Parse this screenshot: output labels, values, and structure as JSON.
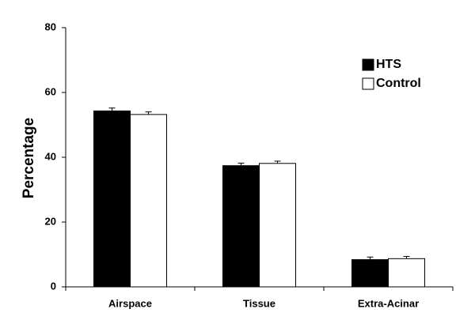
{
  "chart_data": {
    "type": "bar",
    "y_label": "Percentage",
    "categories": [
      "Airspace",
      "Tissue",
      "Extra-Acinar"
    ],
    "series": [
      {
        "name": "HTS",
        "color": "#000000",
        "values": [
          54.3,
          37.4,
          8.4
        ],
        "errors": [
          0.9,
          0.8,
          0.8
        ]
      },
      {
        "name": "Control",
        "color": "#ffffff",
        "values": [
          53.2,
          38.1,
          8.7
        ],
        "errors": [
          0.8,
          0.7,
          0.7
        ]
      }
    ],
    "ylim": [
      0,
      80
    ],
    "yticks": [
      0,
      20,
      40,
      60,
      80
    ],
    "legend": "upper right"
  }
}
